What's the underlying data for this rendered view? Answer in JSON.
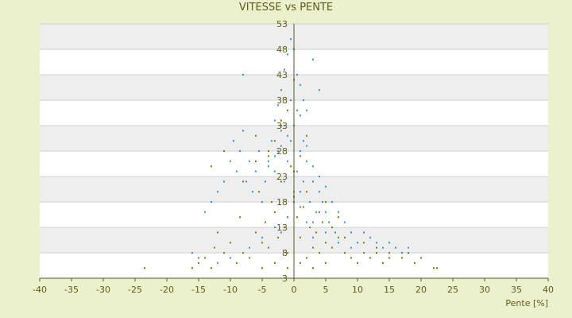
{
  "chart_data": {
    "type": "scatter",
    "title": "VITESSE vs PENTE",
    "xlabel": "Pente [%]",
    "ylabel": "",
    "xlim": [
      -40,
      40
    ],
    "ylim": [
      3,
      53
    ],
    "x_ticks": [
      "-40",
      "-35",
      "-30",
      "-25",
      "-20",
      "-15",
      "-10",
      "-5",
      "0",
      "5",
      "10",
      "15",
      "20",
      "25",
      "30",
      "35",
      "40"
    ],
    "y_ticks": [
      "3",
      "8",
      "13",
      "18",
      "23",
      "28",
      "33",
      "38",
      "43",
      "48",
      "53"
    ],
    "grid": true,
    "legend": "none",
    "colors": {
      "background": "#ecf1cd",
      "band_light": "#ffffff",
      "band_dark": "#eeeeee",
      "grid": "#d0d0d0",
      "axis": "#555520",
      "series_blue": "#3a8fd8",
      "series_olive": "#7a7a18"
    },
    "series": [
      {
        "color": "#7a7a18",
        "x": [
          -23.5,
          -16,
          -15,
          -14,
          -13,
          -12.5,
          -12,
          -11,
          -10,
          -9,
          -8.5,
          -8,
          -7,
          -6,
          -5.5,
          -5,
          -4.5,
          -4,
          -3.5,
          -3,
          -2.5,
          -2,
          -1.5,
          -1,
          -0.5,
          0,
          0.5,
          1,
          1.5,
          2,
          2.5,
          3,
          3.5,
          4,
          4.5,
          5,
          6,
          7,
          8,
          9,
          10,
          11,
          12,
          13,
          14,
          15,
          16,
          17,
          18,
          19,
          20,
          22,
          22.5,
          -6,
          -4,
          -3,
          -2,
          -1,
          0,
          1,
          2,
          3,
          5,
          7,
          9,
          11,
          13,
          15,
          -5,
          -3,
          -1,
          1,
          3,
          5,
          -13,
          -11,
          -8,
          -6,
          -4,
          -2,
          0,
          2,
          4,
          6,
          8
        ],
        "y": [
          5,
          5,
          6,
          7,
          5,
          9,
          12,
          8,
          10,
          6,
          15,
          8,
          7,
          12,
          20,
          10,
          14,
          9,
          18,
          16,
          11,
          22,
          13,
          8,
          25,
          19,
          15,
          11,
          17,
          7,
          13,
          9,
          12,
          8,
          14,
          10,
          9,
          11,
          8,
          7,
          6,
          8,
          7,
          9,
          6,
          8,
          9,
          7,
          8,
          6,
          7,
          5,
          5,
          26,
          28,
          30,
          33,
          36,
          24,
          27,
          31,
          22,
          18,
          15,
          12,
          10,
          8,
          7,
          5,
          6,
          5,
          6,
          5,
          6,
          25,
          28,
          22,
          31,
          27,
          34,
          42,
          20,
          16,
          13,
          11
        ]
      },
      {
        "color": "#3a8fd8",
        "x": [
          -14,
          -13,
          -12,
          -11,
          -10,
          -9.5,
          -9,
          -8.5,
          -8,
          -7.5,
          -7,
          -6.5,
          -6,
          -5.5,
          -5,
          -4.5,
          -4,
          -3.5,
          -3,
          -2.5,
          -2,
          -1.5,
          -1,
          -0.5,
          0,
          0.5,
          1,
          1.5,
          2,
          2.5,
          3,
          3.5,
          4,
          4.5,
          5,
          5.5,
          6,
          6.5,
          7,
          8,
          9,
          10,
          11,
          12,
          13,
          14,
          15,
          16,
          17,
          18,
          -8,
          -3,
          -2.5,
          -2,
          -1.5,
          -1,
          -0.5,
          0,
          0.5,
          1,
          1.5,
          2,
          3,
          4,
          -16,
          -15,
          -12,
          -10,
          -7,
          -5,
          -3,
          -1,
          1,
          3,
          5,
          7,
          9,
          -2,
          -1,
          0,
          1,
          2,
          3,
          -4,
          -3,
          -2,
          -1,
          0,
          1,
          2,
          3,
          4,
          5,
          -1.5,
          -0.5,
          0.5,
          1.5
        ],
        "y": [
          16,
          18,
          20,
          22,
          26,
          30,
          24,
          28,
          32,
          22,
          26,
          20,
          24,
          28,
          18,
          22,
          26,
          30,
          24,
          28,
          32,
          22,
          26,
          30,
          20,
          24,
          28,
          22,
          26,
          18,
          22,
          16,
          20,
          18,
          16,
          14,
          18,
          12,
          16,
          14,
          12,
          10,
          12,
          11,
          10,
          9,
          10,
          9,
          8,
          9,
          43,
          34,
          37,
          40,
          44,
          47,
          50,
          48,
          43,
          41,
          38,
          36,
          46,
          40,
          8,
          7,
          6,
          7,
          9,
          11,
          13,
          15,
          17,
          14,
          12,
          10,
          9,
          12,
          15,
          18,
          20,
          14,
          11,
          25,
          27,
          29,
          31,
          33,
          35,
          29,
          25,
          23,
          21,
          33,
          38,
          36,
          30
        ]
      }
    ]
  }
}
